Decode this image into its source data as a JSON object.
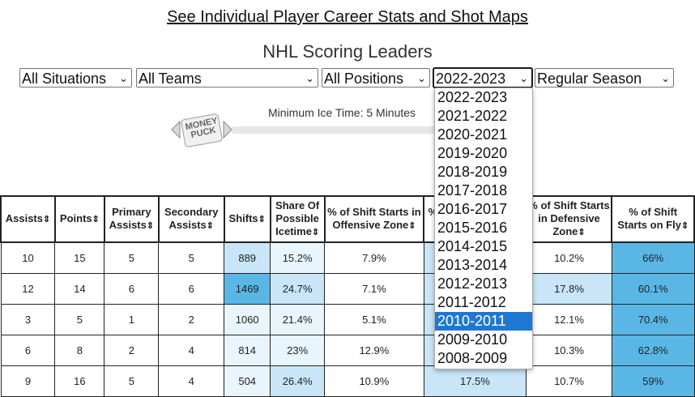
{
  "link_text": "See Individual Player Career Stats and Shot Maps",
  "title": "NHL Scoring Leaders",
  "filters": {
    "situation": "All Situations",
    "team": "All Teams",
    "position": "All Positions",
    "season": "2022-2023",
    "season_type": "Regular Season"
  },
  "min_ice_time": "Minimum Ice Time: 5 Minutes",
  "logo_text": "MONEY PUCK",
  "season_options": [
    "2022-2023",
    "2021-2022",
    "2020-2021",
    "2019-2020",
    "2018-2019",
    "2017-2018",
    "2016-2017",
    "2015-2016",
    "2014-2015",
    "2013-2014",
    "2012-2013",
    "2011-2012",
    "2010-2011",
    "2009-2010",
    "2008-2009"
  ],
  "highlighted_option": "2010-2011",
  "headers": [
    "Assists",
    "Points",
    "Primary Assists",
    "Secondary Assists",
    "Shifts",
    "Share Of Possible Icetime",
    "% of Shift Starts in Offensive Zone",
    "% of Shift Starts in Neutral Zone",
    "% of Shift Starts in Defensive Zone",
    "% of Shift Starts on Fly"
  ],
  "rows": [
    [
      "10",
      "15",
      "5",
      "5",
      "889",
      "15.2%",
      "7.9%",
      "",
      "10.2%",
      "66%"
    ],
    [
      "12",
      "14",
      "6",
      "6",
      "1469",
      "24.7%",
      "7.1%",
      "",
      "17.8%",
      "60.1%"
    ],
    [
      "3",
      "5",
      "1",
      "2",
      "1060",
      "21.4%",
      "5.1%",
      "",
      "12.1%",
      "70.4%"
    ],
    [
      "6",
      "8",
      "2",
      "4",
      "814",
      "23%",
      "12.9%",
      "",
      "10.3%",
      "62.8%"
    ],
    [
      "9",
      "16",
      "5",
      "4",
      "504",
      "26.4%",
      "10.9%",
      "17.5%",
      "10.7%",
      "59%"
    ]
  ],
  "colors": {
    "shade_light": "#e9f5fc",
    "shade_mid": "#c8e6f7",
    "shade_dark": "#5ab7e5",
    "highlight": "#1e78d2"
  }
}
